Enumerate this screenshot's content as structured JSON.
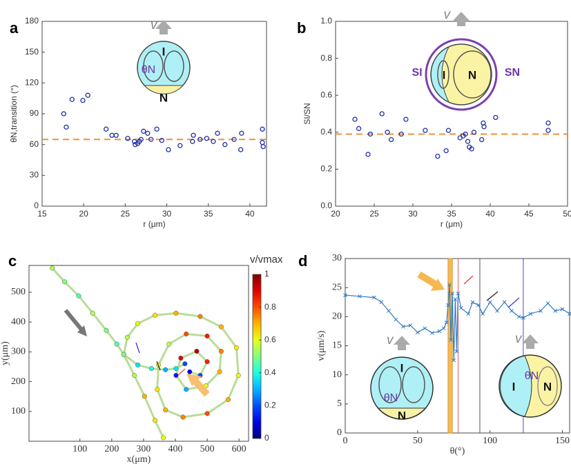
{
  "chart_data": [
    {
      "type": "scatter",
      "panel_label": "a",
      "x_label": "r (μm)",
      "y_label": "θN,transition (°)",
      "xlim": [
        15,
        42
      ],
      "xticks": [
        15,
        20,
        25,
        30,
        35,
        40
      ],
      "ylim": [
        0,
        180
      ],
      "yticks": [
        0,
        30,
        60,
        90,
        120,
        150,
        180
      ],
      "series": [
        {
          "color": "#1f2fa8",
          "x": [
            17.6,
            17.9,
            18.6,
            19.9,
            20.5,
            22.7,
            23.4,
            23.9,
            25.3,
            26.1,
            26.2,
            26.5,
            26.7,
            26.9,
            27.2,
            27.7,
            28.1,
            28.8,
            29.4,
            30.2,
            31.6,
            33.1,
            33.2,
            34.0,
            34.8,
            35.6,
            36.1,
            37.0,
            38.1,
            38.9,
            39.0,
            41.5,
            41.5,
            41.6
          ],
          "y": [
            90,
            77,
            104,
            103,
            108,
            75,
            69,
            69,
            66,
            63,
            60,
            61,
            63,
            65,
            73,
            71,
            65,
            75,
            64,
            55,
            59,
            63,
            69,
            65,
            66,
            63,
            71,
            60,
            65,
            55,
            71,
            75,
            62,
            58
          ]
        }
      ],
      "reference_line": {
        "value": 65,
        "color": "#f0902f"
      },
      "inset": {
        "v": "v",
        "I": "I",
        "N": "N",
        "theta": "θN"
      }
    },
    {
      "type": "scatter",
      "panel_label": "b",
      "x_label": "r (μm)",
      "y_label": "SI/SN",
      "xlim": [
        20,
        50
      ],
      "xticks": [
        20,
        25,
        30,
        35,
        40,
        45,
        50
      ],
      "ylim": [
        0,
        1
      ],
      "yticks": [
        {
          "value": 0,
          "label": "0.0"
        },
        0.2,
        0.4,
        0.6,
        0.8,
        {
          "value": 1,
          "label": "1.0"
        }
      ],
      "series": [
        {
          "color": "#1f2fa8",
          "x": [
            22.5,
            23.0,
            24.2,
            24.5,
            26.0,
            26.7,
            27.2,
            28.5,
            29.1,
            31.6,
            33.2,
            34.3,
            34.6,
            36.1,
            36.5,
            36.8,
            37.1,
            37.3,
            37.6,
            37.9,
            38.9,
            39.1,
            39.2,
            40.7,
            47.5,
            47.5
          ],
          "y": [
            0.47,
            0.42,
            0.28,
            0.39,
            0.5,
            0.4,
            0.36,
            0.39,
            0.47,
            0.41,
            0.27,
            0.3,
            0.41,
            0.37,
            0.38,
            0.39,
            0.35,
            0.32,
            0.31,
            0.4,
            0.36,
            0.45,
            0.43,
            0.48,
            0.45,
            0.41
          ]
        }
      ],
      "reference_line": {
        "value": 0.39,
        "color": "#f0902f"
      },
      "inset": {
        "v": "v",
        "I": "I",
        "N": "N",
        "s_i": "SI",
        "s_n": "SN"
      }
    },
    {
      "type": "trajectory",
      "panel_label": "c",
      "x_label": "x(μm)",
      "y_label": "y(μm)",
      "xlim": [
        -60,
        630
      ],
      "xticks": [
        100,
        200,
        300,
        400,
        500,
        600
      ],
      "ylim": [
        0,
        590
      ],
      "yticks": [
        100,
        200,
        300,
        400,
        500
      ],
      "series": [
        {
          "x": [
            13,
            52,
            96,
            140,
            183,
            216,
            238,
            282,
            325,
            369,
            402,
            430,
            null,
            362,
            336,
            303,
            271,
            238,
            249,
            282,
            336,
            402,
            478,
            544,
            592,
            598,
            566,
            500,
            424,
            369,
            343,
            347,
            380,
            434,
            500,
            544,
            539,
            496,
            434,
            402,
            417,
            467,
            500,
            478,
            445
          ],
          "y": [
            581,
            535,
            488,
            430,
            372,
            326,
            291,
            256,
            244,
            240,
            244,
            260,
            null,
            12,
            70,
            151,
            221,
            291,
            349,
            395,
            423,
            430,
            419,
            384,
            314,
            221,
            140,
            93,
            81,
            105,
            174,
            256,
            326,
            360,
            353,
            302,
            233,
            186,
            174,
            221,
            279,
            302,
            267,
            221,
            233
          ],
          "c": [
            0.55,
            0.5,
            0.45,
            0.55,
            0.5,
            0.45,
            0.4,
            0.35,
            0.4,
            0.3,
            0.35,
            0.2,
            null,
            0.6,
            0.65,
            0.7,
            0.55,
            0.5,
            0.55,
            0.6,
            0.65,
            0.7,
            0.75,
            0.7,
            0.65,
            0.6,
            0.7,
            0.8,
            0.75,
            0.7,
            0.65,
            0.6,
            0.55,
            0.8,
            0.85,
            0.75,
            0.7,
            0.6,
            0.3,
            0.15,
            0.9,
            0.95,
            0.85,
            0.2,
            0.1
          ]
        }
      ],
      "colorbar": {
        "label": "v/vmax",
        "lim": [
          0,
          1
        ],
        "ticks": [
          0,
          0.2,
          0.4,
          0.6,
          0.8,
          1
        ]
      }
    },
    {
      "type": "line",
      "panel_label": "d",
      "x_label": "θ(°)",
      "y_label": "v(μm/s)",
      "xlim": [
        0,
        155
      ],
      "xticks": [
        0,
        50,
        100,
        150
      ],
      "ylim": [
        0,
        30
      ],
      "yticks": [
        0,
        5,
        10,
        15,
        20,
        25,
        30
      ],
      "color": "#2e7bc4",
      "x": [
        0,
        10,
        20,
        25,
        30,
        35,
        40,
        45,
        50,
        55,
        60,
        65,
        68,
        70,
        71,
        72,
        73,
        74,
        75,
        76,
        77,
        78,
        80,
        85,
        88,
        92,
        95,
        100,
        105,
        110,
        115,
        120,
        123,
        128,
        135,
        140,
        145,
        150,
        155
      ],
      "values": [
        23.7,
        23.5,
        23.3,
        22.5,
        21,
        19.5,
        18.3,
        18.5,
        17.3,
        18,
        17.2,
        17.5,
        18,
        19,
        22,
        25.5,
        16,
        24,
        12.5,
        23,
        14,
        24,
        21.5,
        20.5,
        22.5,
        22,
        20.5,
        22.5,
        21,
        22.5,
        21,
        20,
        19.8,
        20.5,
        21,
        22.3,
        21,
        21.3,
        20.5
      ],
      "band": {
        "from": 71,
        "to": 74,
        "color": "#f7b955"
      },
      "vlines": [
        {
          "value": 78,
          "color": "#e06060"
        },
        {
          "value": 93,
          "color": "#555555"
        },
        {
          "value": 123,
          "color": "#4a4ad0"
        }
      ],
      "insets": [
        {
          "v": "v",
          "I": "I",
          "N": "N",
          "theta": "θN"
        },
        {
          "v": "v",
          "I": "I",
          "N": "N",
          "theta": "θN"
        }
      ]
    }
  ]
}
